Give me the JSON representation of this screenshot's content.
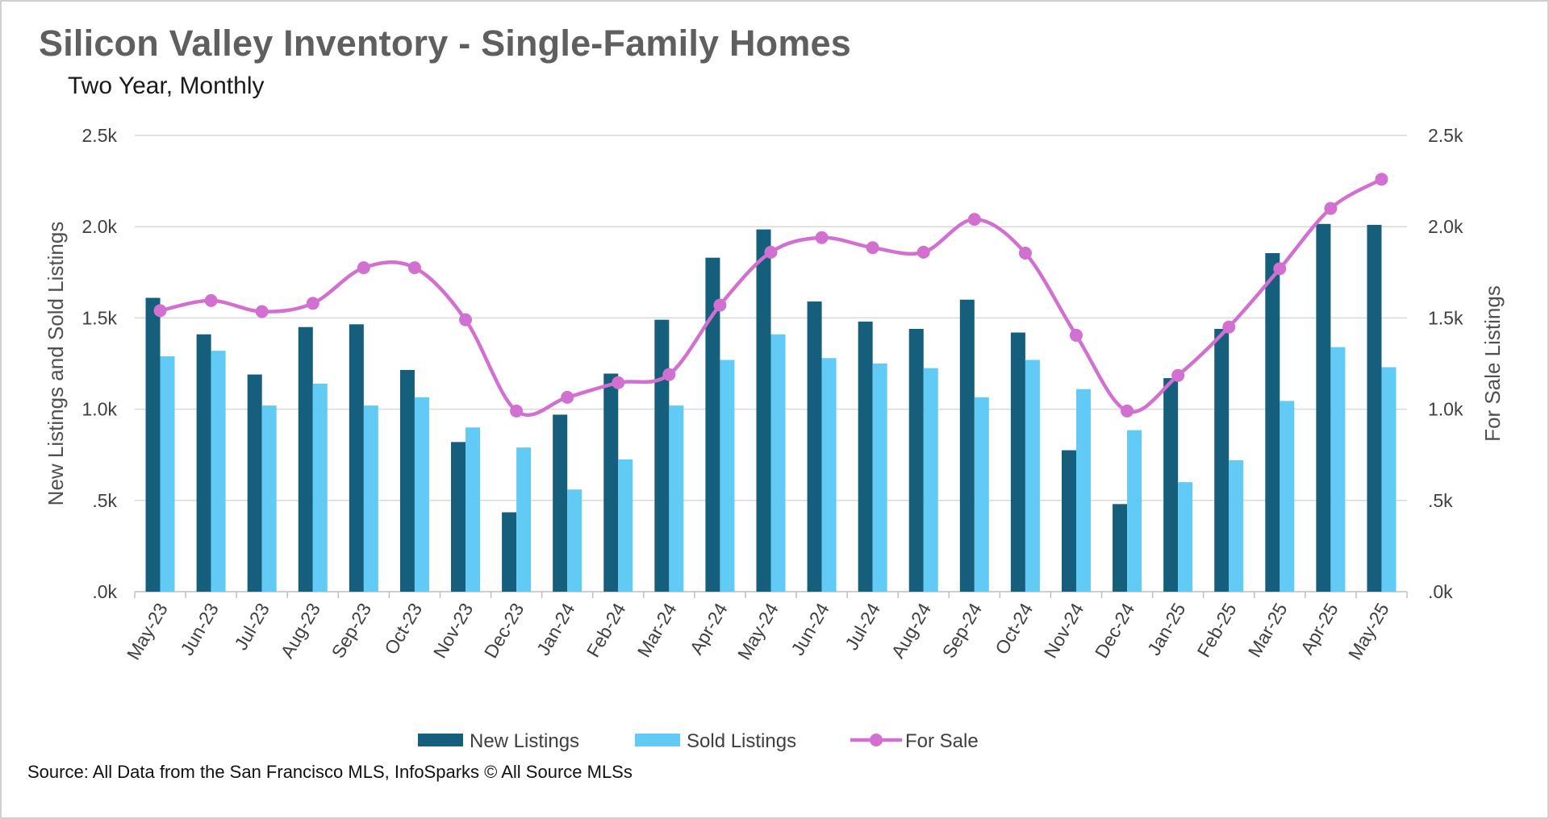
{
  "header": {
    "title": "Silicon Valley Inventory - Single-Family Homes",
    "subtitle": "Two Year, Monthly"
  },
  "footer": {
    "source": "Source: All Data from the San Francisco MLS, InfoSparks © All Source MLSs"
  },
  "colors": {
    "new_listings": "#155e7c",
    "sold_listings": "#62cbf5",
    "for_sale": "#d270d1",
    "grid": "#d9d9d9"
  },
  "chart_data": {
    "type": "bar+line",
    "title": "Silicon Valley Inventory - Single-Family Homes",
    "subtitle": "Two Year, Monthly",
    "categories": [
      "May-23",
      "Jun-23",
      "Jul-23",
      "Aug-23",
      "Sep-23",
      "Oct-23",
      "Nov-23",
      "Dec-23",
      "Jan-24",
      "Feb-24",
      "Mar-24",
      "Apr-24",
      "May-24",
      "Jun-24",
      "Jul-24",
      "Aug-24",
      "Sep-24",
      "Oct-24",
      "Nov-24",
      "Dec-24",
      "Jan-25",
      "Feb-25",
      "Mar-25",
      "Apr-25",
      "May-25"
    ],
    "series": [
      {
        "name": "New Listings",
        "type": "bar",
        "axis": "left",
        "values": [
          1610,
          1410,
          1190,
          1450,
          1465,
          1215,
          820,
          435,
          970,
          1195,
          1490,
          1830,
          1985,
          1590,
          1480,
          1440,
          1600,
          1420,
          775,
          480,
          1170,
          1440,
          1855,
          2015,
          2010
        ]
      },
      {
        "name": "Sold Listings",
        "type": "bar",
        "axis": "left",
        "values": [
          1290,
          1320,
          1020,
          1140,
          1020,
          1065,
          900,
          790,
          560,
          725,
          1020,
          1270,
          1410,
          1280,
          1250,
          1225,
          1065,
          1270,
          1110,
          885,
          600,
          720,
          1045,
          1340,
          1230
        ]
      },
      {
        "name": "For Sale",
        "type": "line",
        "axis": "right",
        "values": [
          1540,
          1595,
          1535,
          1580,
          1775,
          1775,
          1490,
          990,
          1065,
          1145,
          1190,
          1570,
          1860,
          1940,
          1885,
          1860,
          2040,
          1855,
          1405,
          990,
          1185,
          1450,
          1770,
          2100,
          2260
        ]
      }
    ],
    "ylabel": "New Listings and Sold Listings",
    "y2label": "For Sale Listings",
    "ylim": [
      0,
      2500
    ],
    "y2lim": [
      0,
      2500
    ],
    "yticks": [
      ".0k",
      ".5k",
      "1.0k",
      "1.5k",
      "2.0k",
      "2.5k"
    ],
    "ytick_values": [
      0,
      500,
      1000,
      1500,
      2000,
      2500
    ],
    "legend": [
      "New Listings",
      "Sold Listings",
      "For Sale"
    ],
    "legend_position": "bottom",
    "grid": true
  }
}
